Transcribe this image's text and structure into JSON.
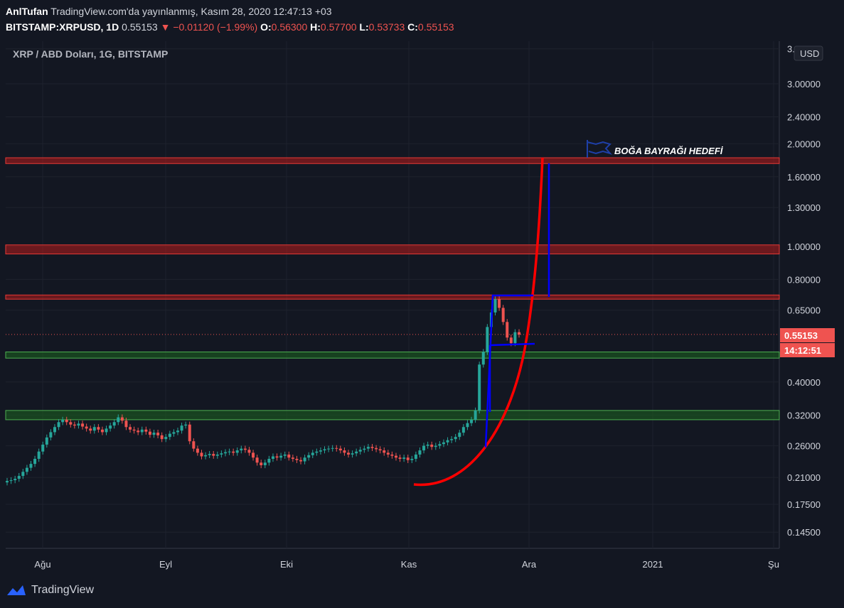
{
  "header": {
    "author": "AnlTufan",
    "published": "TradingView.com'da yayınlanmış, Kasım 28, 2020 12:47:13 +03",
    "symbol": "BITSTAMP:XRPUSD, 1D",
    "last": "0.55153",
    "change": "−0.01120 (−1.99%)",
    "o_label": "O:",
    "o_value": "0.56300",
    "h_label": "H:",
    "h_value": "0.57700",
    "l_label": "L:",
    "l_value": "0.53733",
    "c_label": "C:",
    "c_value": "0.55153"
  },
  "pane_title": "XRP / ABD Doları, 1G, BITSTAMP",
  "currency_button": "USD",
  "price_tag": "0.55153",
  "countdown_tag": "14:12:51",
  "annotation": "BOĞA BAYRAĞI HEDEFİ",
  "brand": "TradingView",
  "colors": {
    "background": "#131722",
    "up": "#26a69a",
    "down": "#ef5350",
    "resistance": "#b71c1c",
    "support": "#1b5e20",
    "trend_curve": "#ff0000",
    "flag": "#0000ff"
  },
  "chart_data": {
    "type": "candlestick",
    "yscale": "log",
    "y_ticks": [
      "3.80000",
      "3.00000",
      "2.40000",
      "2.00000",
      "1.60000",
      "1.30000",
      "1.00000",
      "0.80000",
      "0.65000",
      "0.55153",
      "0.40000",
      "0.32000",
      "0.26000",
      "0.21000",
      "0.17500",
      "0.14500"
    ],
    "x_ticks": [
      "Ağu",
      "Eyl",
      "Eki",
      "Kas",
      "Ara",
      "2021",
      "Şu"
    ],
    "resistance_zones": [
      [
        1.75,
        1.82
      ],
      [
        0.95,
        1.01
      ],
      [
        0.7,
        0.72
      ]
    ],
    "support_zones": [
      [
        0.47,
        0.49
      ],
      [
        0.31,
        0.33
      ]
    ],
    "close_series": [
      0.205,
      0.206,
      0.208,
      0.212,
      0.218,
      0.224,
      0.23,
      0.238,
      0.25,
      0.262,
      0.275,
      0.285,
      0.295,
      0.305,
      0.31,
      0.305,
      0.3,
      0.298,
      0.302,
      0.296,
      0.292,
      0.288,
      0.295,
      0.29,
      0.285,
      0.292,
      0.298,
      0.305,
      0.315,
      0.308,
      0.295,
      0.29,
      0.288,
      0.285,
      0.29,
      0.286,
      0.28,
      0.284,
      0.279,
      0.272,
      0.276,
      0.282,
      0.285,
      0.288,
      0.298,
      0.3,
      0.268,
      0.255,
      0.248,
      0.242,
      0.244,
      0.246,
      0.243,
      0.245,
      0.247,
      0.249,
      0.25,
      0.248,
      0.252,
      0.255,
      0.253,
      0.248,
      0.24,
      0.232,
      0.228,
      0.232,
      0.238,
      0.242,
      0.24,
      0.243,
      0.245,
      0.24,
      0.238,
      0.236,
      0.234,
      0.24,
      0.244,
      0.248,
      0.25,
      0.252,
      0.254,
      0.255,
      0.256,
      0.255,
      0.252,
      0.248,
      0.245,
      0.247,
      0.25,
      0.253,
      0.255,
      0.258,
      0.256,
      0.254,
      0.252,
      0.248,
      0.245,
      0.243,
      0.24,
      0.238,
      0.24,
      0.236,
      0.238,
      0.245,
      0.252,
      0.26,
      0.262,
      0.258,
      0.26,
      0.263,
      0.266,
      0.27,
      0.272,
      0.276,
      0.284,
      0.295,
      0.303,
      0.31,
      0.33,
      0.45,
      0.49,
      0.58,
      0.64,
      0.7,
      0.66,
      0.6,
      0.54,
      0.52,
      0.56,
      0.551
    ]
  }
}
